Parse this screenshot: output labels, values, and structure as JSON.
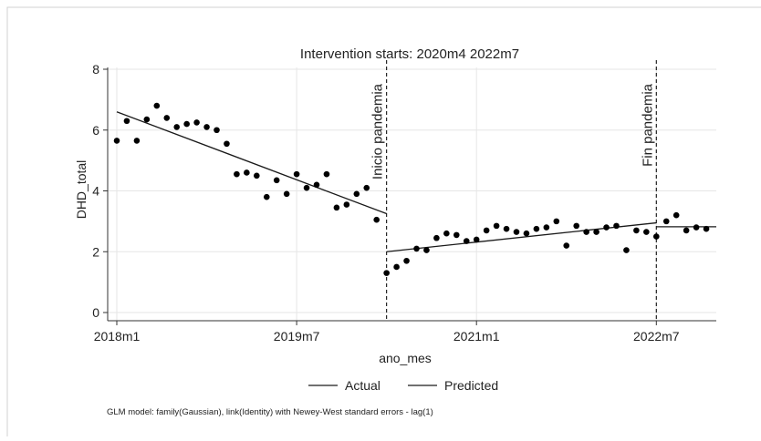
{
  "chart_data": {
    "type": "scatter",
    "title": "Intervention starts: 2020m4 2022m7",
    "xlabel": "ano_mes",
    "ylabel": "DHD_total",
    "xlim": [
      "2018m1",
      "2023m1"
    ],
    "ylim": [
      0,
      8
    ],
    "y_ticks": [
      0,
      2,
      4,
      6,
      8
    ],
    "x_ticks": [
      {
        "label": "2018m1",
        "month_index": 0
      },
      {
        "label": "2019m7",
        "month_index": 18
      },
      {
        "label": "2021m1",
        "month_index": 36
      },
      {
        "label": "2022m7",
        "month_index": 54
      }
    ],
    "grid": true,
    "series": [
      {
        "name": "Actual",
        "style": "markers",
        "month_index": [
          0,
          1,
          2,
          3,
          4,
          5,
          6,
          7,
          8,
          9,
          10,
          11,
          12,
          13,
          14,
          15,
          16,
          17,
          18,
          19,
          20,
          21,
          22,
          23,
          24,
          25,
          26,
          27,
          28,
          29,
          30,
          31,
          32,
          33,
          34,
          35,
          36,
          37,
          38,
          39,
          40,
          41,
          42,
          43,
          44,
          45,
          46,
          47,
          48,
          49,
          50,
          51,
          52,
          53,
          54,
          55,
          56,
          57,
          58,
          59
        ],
        "values": [
          5.65,
          6.3,
          5.65,
          6.35,
          6.8,
          6.4,
          6.1,
          6.2,
          6.25,
          6.1,
          6.0,
          5.55,
          4.55,
          4.6,
          4.5,
          3.8,
          4.35,
          3.9,
          4.55,
          4.1,
          4.2,
          4.55,
          3.45,
          3.55,
          3.9,
          4.1,
          3.05,
          1.3,
          1.5,
          1.7,
          2.1,
          2.05,
          2.45,
          2.6,
          2.55,
          2.35,
          2.4,
          2.7,
          2.85,
          2.75,
          2.65,
          2.6,
          2.75,
          2.8,
          3.0,
          2.2,
          2.85,
          2.65,
          2.65,
          2.8,
          2.85,
          2.05,
          2.7,
          2.65,
          2.5,
          3.0,
          3.2,
          2.7,
          2.8,
          2.75
        ]
      },
      {
        "name": "Predicted",
        "style": "line",
        "segments": [
          {
            "month_index": [
              0,
              27
            ],
            "values": [
              6.6,
              3.25
            ]
          },
          {
            "month_index": [
              27,
              54
            ],
            "values": [
              2.0,
              2.95
            ]
          },
          {
            "month_index": [
              54,
              60
            ],
            "values": [
              2.82,
              2.82
            ]
          }
        ]
      }
    ],
    "annotations": [
      {
        "text": "Inicio pandemia",
        "at_month_index": 27
      },
      {
        "text": "Fin pandemia",
        "at_month_index": 54
      }
    ],
    "legend": {
      "placement": "bottom",
      "items": [
        {
          "label": "Actual"
        },
        {
          "label": "Predicted"
        }
      ]
    },
    "note": "GLM model: family(Gaussian), link(Identity) with Newey-West standard errors - lag(1)",
    "colors": {
      "marker": "#000000",
      "line": "#1a1a1a",
      "grid": "#e6e6e6"
    }
  }
}
